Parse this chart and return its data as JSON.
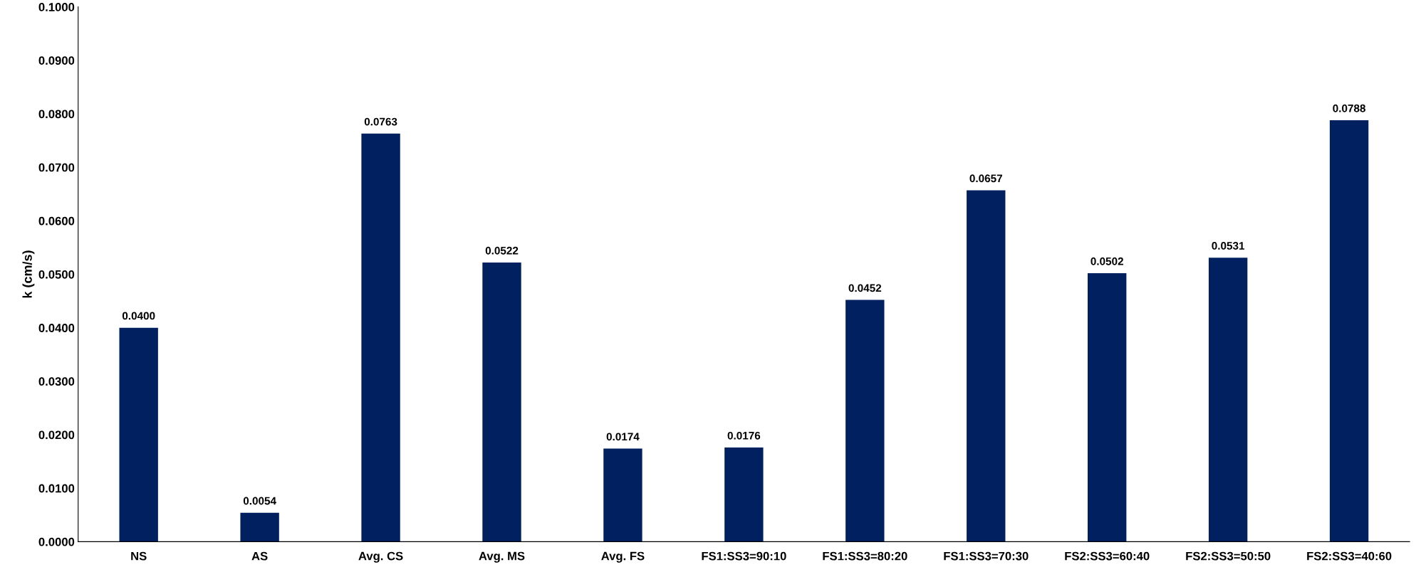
{
  "chart_data": {
    "type": "bar",
    "ylabel": "k (cm/s)",
    "categories": [
      "NS",
      "AS",
      "Avg. CS",
      "Avg. MS",
      "Avg. FS",
      "FS1:SS3=90:10",
      "FS1:SS3=80:20",
      "FS1:SS3=70:30",
      "FS2:SS3=60:40",
      "FS2:SS3=50:50",
      "FS2:SS3=40:60"
    ],
    "values": [
      0.04,
      0.0054,
      0.0763,
      0.0522,
      0.0174,
      0.0176,
      0.0452,
      0.0657,
      0.0502,
      0.0531,
      0.0788
    ],
    "value_labels": [
      "0.0400",
      "0.0054",
      "0.0763",
      "0.0522",
      "0.0174",
      "0.0176",
      "0.0452",
      "0.0657",
      "0.0502",
      "0.0531",
      "0.0788"
    ],
    "color": "#002060",
    "ylim": [
      0,
      0.1
    ],
    "yticks": [
      {
        "value": 0,
        "label": "0.0000"
      },
      {
        "value": 0.01,
        "label": "0.0100"
      },
      {
        "value": 0.02,
        "label": "0.0200"
      },
      {
        "value": 0.03,
        "label": "0.0300"
      },
      {
        "value": 0.04,
        "label": "0.0400"
      },
      {
        "value": 0.05,
        "label": "0.0500"
      },
      {
        "value": 0.06,
        "label": "0.0600"
      },
      {
        "value": 0.07,
        "label": "0.0700"
      },
      {
        "value": 0.08,
        "label": "0.0800"
      },
      {
        "value": 0.09,
        "label": "0.0900"
      },
      {
        "value": 0.1,
        "label": "0.1000"
      }
    ],
    "grid": false,
    "legend": false
  }
}
